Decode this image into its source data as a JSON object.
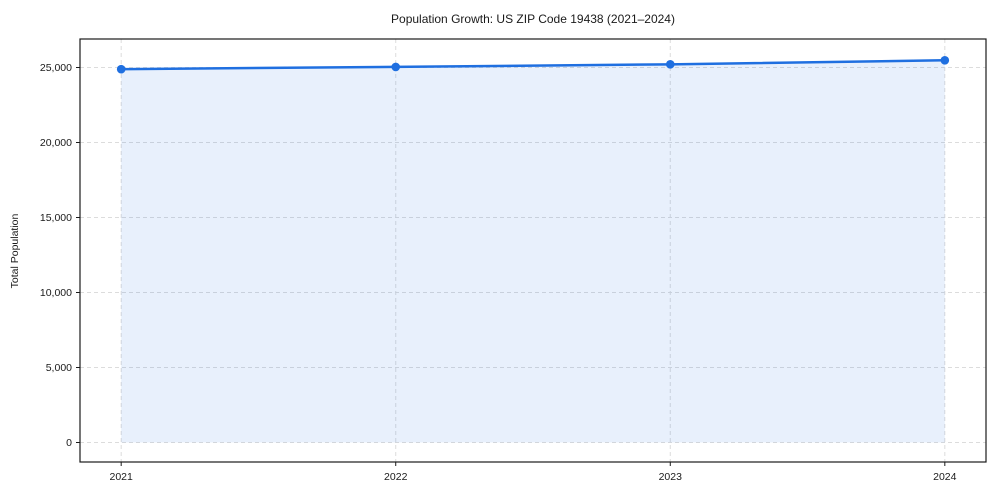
{
  "chart_data": {
    "type": "line",
    "title": "Population Growth: US ZIP Code 19438 (2021–2024)",
    "xlabel": "",
    "ylabel": "Total Population",
    "categories": [
      "2021",
      "2022",
      "2023",
      "2024"
    ],
    "x": [
      2021,
      2022,
      2023,
      2024
    ],
    "series": [
      {
        "name": "Total Population",
        "values": [
          24890,
          25040,
          25210,
          25480
        ],
        "marker": "circle",
        "area_fill": true
      }
    ],
    "y_ticks": [
      0,
      5000,
      10000,
      15000,
      20000,
      25000
    ],
    "y_tick_labels": [
      "0",
      "5,000",
      "10,000",
      "15,000",
      "20,000",
      "25,000"
    ],
    "xlim": [
      2020.85,
      2024.15
    ],
    "ylim": [
      -1300,
      26900
    ],
    "area_baseline": 0,
    "grid": true,
    "grid_style": "dashed",
    "legend_position": "none"
  },
  "colors": {
    "line": "#1f6fe0",
    "marker": "#1f6fe0",
    "area_fill": "rgba(31, 111, 224, 0.10)",
    "grid": "#dcdcdc",
    "spine": "#1a1a1a",
    "text": "#1a1a1a",
    "background": "#ffffff"
  }
}
